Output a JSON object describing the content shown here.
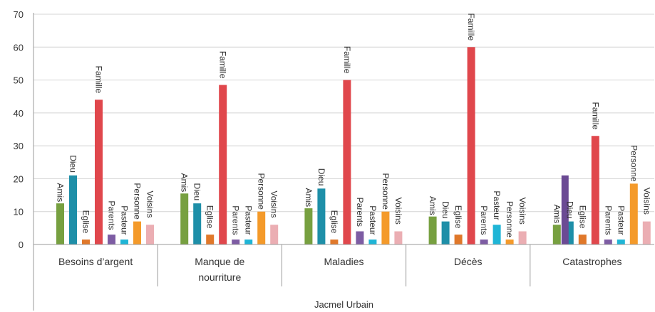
{
  "chart_data": {
    "type": "bar",
    "title": "",
    "xlabel": "Jacmel Urbain",
    "ylabel": "",
    "ylim": [
      0,
      70
    ],
    "yticks": [
      0,
      10,
      20,
      30,
      40,
      50,
      60,
      70
    ],
    "grid": true,
    "legend": "none",
    "categories": [
      [
        "Besoins d’argent"
      ],
      [
        "Manque de",
        "nourriture"
      ],
      [
        "Maladies"
      ],
      [
        "Décès"
      ],
      [
        "Catastrophes"
      ]
    ],
    "series": [
      {
        "name": "Amis",
        "color": "#77a040",
        "values": [
          12.5,
          15.5,
          11,
          8.5,
          6
        ]
      },
      {
        "name": "Dieu",
        "color": "#1e8fa8",
        "values": [
          21,
          12.5,
          17,
          7,
          7
        ]
      },
      {
        "name": "Eglise",
        "color": "#e0782a",
        "values": [
          1.5,
          3,
          1.5,
          3,
          3
        ]
      },
      {
        "name": "Famille",
        "color": "#e0474c",
        "values": [
          44,
          48.5,
          50,
          60,
          33
        ]
      },
      {
        "name": "Parents",
        "color": "#7d5ca3",
        "values": [
          3,
          1.5,
          4,
          1.5,
          1.5
        ]
      },
      {
        "name": "Pasteur",
        "color": "#1fb5d6",
        "values": [
          1.5,
          1.5,
          1.5,
          6,
          1.5
        ]
      },
      {
        "name": "Personne",
        "color": "#f49a2a",
        "values": [
          7,
          10,
          10,
          1.5,
          18.5
        ]
      },
      {
        "name": "Voisins",
        "color": "#ebaeb3",
        "values": [
          6,
          6,
          4,
          4,
          7
        ]
      }
    ],
    "extra_bars": [
      {
        "category": 4,
        "after_series": "Amis",
        "color": "#6b4a94",
        "value": 21
      }
    ]
  }
}
